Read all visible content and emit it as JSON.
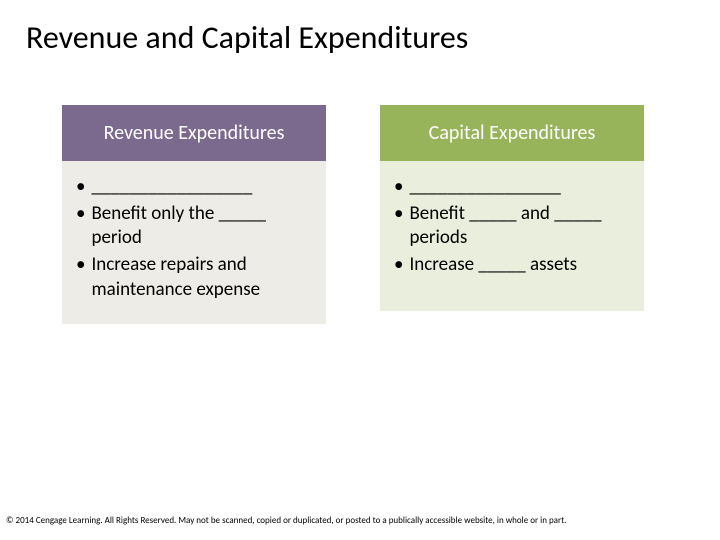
{
  "title": "Revenue and Capital Expenditures",
  "cards": [
    {
      "header": "Revenue Expenditures",
      "header_bg": "#7b6a8d",
      "body_bg": "#edece6",
      "bullets": [
        "_________________",
        "Benefit only the _____ period",
        "Increase repairs and maintenance expense"
      ]
    },
    {
      "header": "Capital Expenditures",
      "header_bg": "#97b45a",
      "body_bg": "#eaeedd",
      "bullets": [
        "________________",
        "Benefit _____ and _____ periods",
        "Increase _____ assets"
      ]
    }
  ],
  "copyright": "© 2014 Cengage Learning. All Rights Reserved. May not be scanned, copied or duplicated, or posted to a publically accessible website, in whole or in part."
}
